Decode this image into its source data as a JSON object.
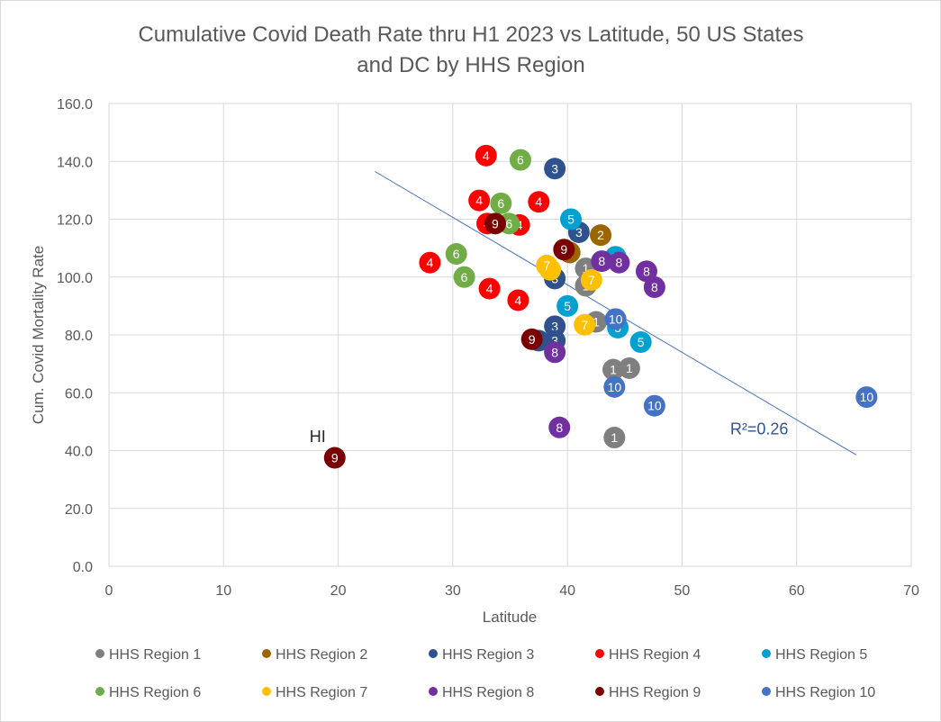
{
  "chart_data": {
    "type": "scatter",
    "title": [
      "Cumulative Covid Death Rate thru H1 2023 vs Latitude, 50 US States",
      "and DC by HHS Region"
    ],
    "xlabel": "Latitude",
    "ylabel": "Cum. Covid Mortality Rate",
    "xlim": [
      0,
      70
    ],
    "ylim": [
      0,
      160
    ],
    "x_ticks": [
      "0",
      "10",
      "20",
      "30",
      "40",
      "50",
      "60",
      "70"
    ],
    "y_ticks": [
      "0.0",
      "20.0",
      "40.0",
      "60.0",
      "80.0",
      "100.0",
      "120.0",
      "140.0",
      "160.0"
    ],
    "grid": "vertical and horizontal major gridlines",
    "legend_position": "bottom",
    "annotations": [
      {
        "text": "HI",
        "x": 17.5,
        "y": 43
      }
    ],
    "trendline": {
      "type": "linear",
      "color": "#4472c4",
      "x": [
        23.2,
        65.2
      ],
      "y": [
        136.5,
        38.5
      ],
      "label": "R²=0.26"
    },
    "series": [
      {
        "name": "HHS Region 1",
        "label": "1",
        "color": "#7f7f7f",
        "points": [
          [
            41.6,
            103
          ],
          [
            41.6,
            97
          ],
          [
            42.5,
            84.5
          ],
          [
            44.0,
            68
          ],
          [
            45.4,
            68.5
          ],
          [
            44.1,
            44.5
          ]
        ]
      },
      {
        "name": "HHS Region 2",
        "label": "2",
        "color": "#9c6500",
        "points": [
          [
            42.9,
            114.5
          ],
          [
            40.2,
            108.5
          ]
        ]
      },
      {
        "name": "HHS Region 3",
        "label": "3",
        "color": "#2f528f",
        "points": [
          [
            38.9,
            137.5
          ],
          [
            41.0,
            115.5
          ],
          [
            38.9,
            99.5
          ],
          [
            38.9,
            83
          ],
          [
            37.5,
            78
          ],
          [
            38.9,
            78
          ]
        ]
      },
      {
        "name": "HHS Region 4",
        "label": "4",
        "color": "#ff0000",
        "points": [
          [
            32.9,
            142
          ],
          [
            32.3,
            126.5
          ],
          [
            37.5,
            126
          ],
          [
            33.0,
            118.5
          ],
          [
            35.8,
            118
          ],
          [
            28.0,
            105
          ],
          [
            33.2,
            96
          ],
          [
            35.7,
            92
          ]
        ]
      },
      {
        "name": "HHS Region 5",
        "label": "5",
        "color": "#00a0d0",
        "points": [
          [
            40.3,
            120
          ],
          [
            44.2,
            107
          ],
          [
            40.0,
            90
          ],
          [
            44.4,
            82.5
          ],
          [
            46.4,
            77.5
          ]
        ]
      },
      {
        "name": "HHS Region 6",
        "label": "6",
        "color": "#70ad47",
        "points": [
          [
            35.9,
            140.5
          ],
          [
            34.2,
            125.5
          ],
          [
            34.9,
            118.5
          ],
          [
            30.3,
            108
          ],
          [
            31.0,
            100
          ]
        ]
      },
      {
        "name": "HHS Region 7",
        "label": "7",
        "color": "#ffc000",
        "points": [
          [
            38.5,
            102.5
          ],
          [
            38.2,
            104
          ],
          [
            42.1,
            99
          ],
          [
            41.5,
            83.5
          ]
        ]
      },
      {
        "name": "HHS Region 8",
        "label": "8",
        "color": "#7030a0",
        "points": [
          [
            43.0,
            105.5
          ],
          [
            44.5,
            105
          ],
          [
            46.9,
            102
          ],
          [
            47.6,
            96.5
          ],
          [
            38.9,
            74
          ],
          [
            39.3,
            48
          ]
        ]
      },
      {
        "name": "HHS Region 9",
        "label": "9",
        "color": "#7b0000",
        "points": [
          [
            39.7,
            109.5
          ],
          [
            33.7,
            118.5
          ],
          [
            36.9,
            78.5
          ],
          [
            19.7,
            37.5
          ]
        ]
      },
      {
        "name": "HHS Region 10",
        "label": "10",
        "color": "#4472c4",
        "points": [
          [
            44.2,
            85.5
          ],
          [
            44.1,
            62
          ],
          [
            47.6,
            55.5
          ],
          [
            66.1,
            58.5
          ]
        ]
      }
    ]
  }
}
